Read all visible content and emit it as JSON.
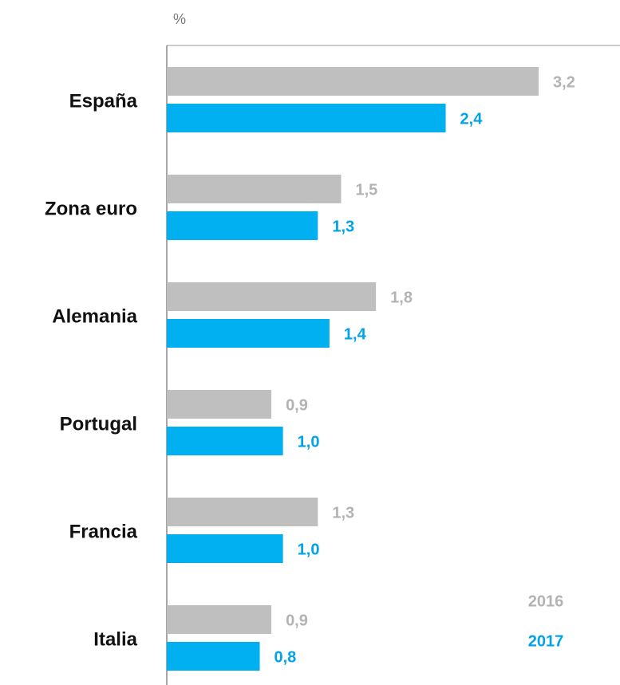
{
  "chart_data": {
    "type": "bar",
    "orientation": "horizontal",
    "axis_label": "%",
    "categories": [
      "España",
      "Zona euro",
      "Alemania",
      "Portugal",
      "Francia",
      "Italia"
    ],
    "series": [
      {
        "name": "2016",
        "color": "#bfbfbf",
        "label_color": "#b3b3b3",
        "values": [
          3.2,
          1.5,
          1.8,
          0.9,
          1.3,
          0.9
        ],
        "value_labels": [
          "3,2",
          "1,5",
          "1,8",
          "0,9",
          "1,3",
          "0,9"
        ]
      },
      {
        "name": "2017",
        "color": "#00b0f0",
        "label_color": "#00a3e8",
        "values": [
          2.4,
          1.3,
          1.4,
          1.0,
          1.0,
          0.8
        ],
        "value_labels": [
          "2,4",
          "1,3",
          "1,4",
          "1,0",
          "1,0",
          "0,8"
        ]
      }
    ],
    "xlim": [
      0,
      3.9
    ]
  }
}
